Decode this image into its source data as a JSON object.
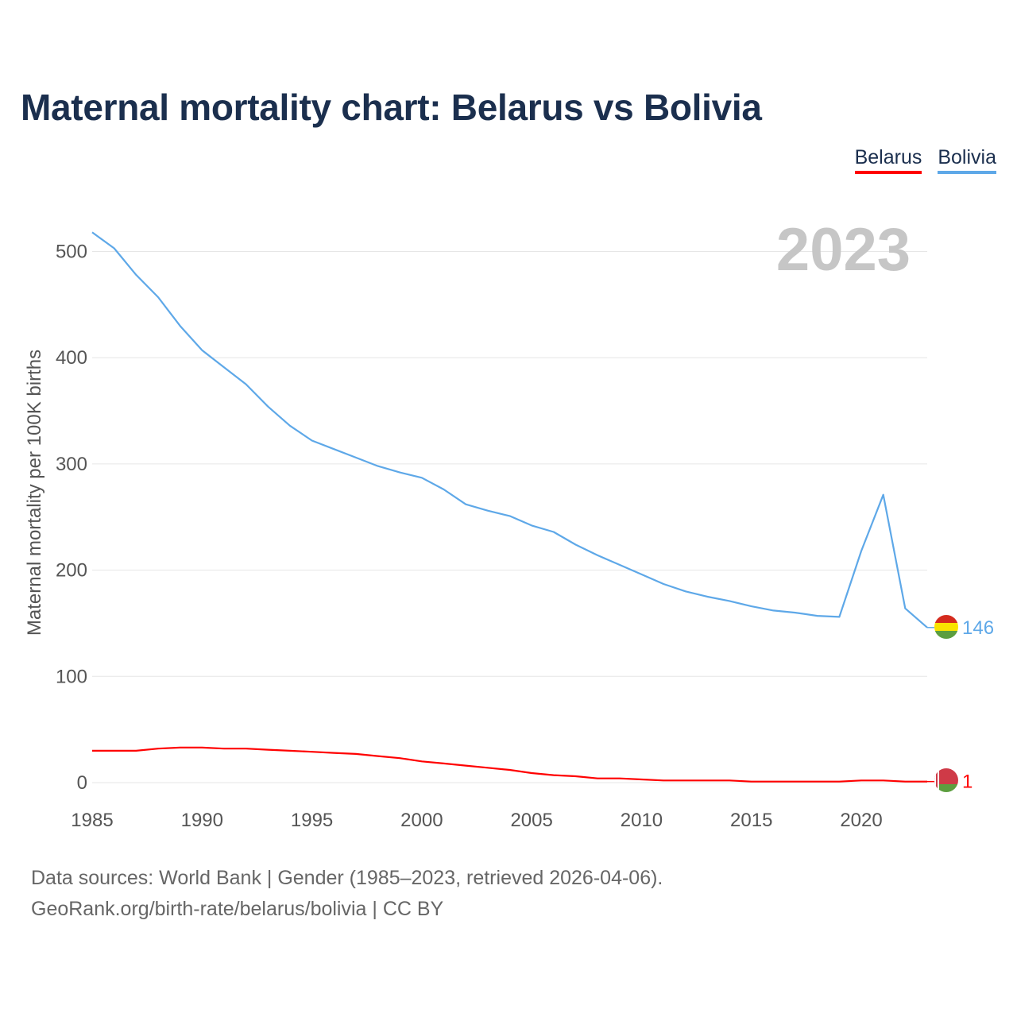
{
  "title": "Maternal mortality chart: Belarus vs Bolivia",
  "legend": {
    "belarus": "Belarus",
    "bolivia": "Bolivia"
  },
  "footer": {
    "line1": "Data sources: World Bank | Gender (1985–2023, retrieved 2026-04-06).",
    "line2": "GeoRank.org/birth-rate/belarus/bolivia | CC BY"
  },
  "colors": {
    "belarus": "#ff0000",
    "bolivia": "#5ea8e8",
    "title": "#1b2f4e",
    "grid": "#e6e6e6",
    "watermark": "#c6c6c6"
  },
  "chart_data": {
    "type": "line",
    "title": "Maternal mortality chart: Belarus vs Bolivia",
    "xlabel": "",
    "ylabel": "Maternal mortality per 100K births",
    "year_watermark": "2023",
    "xlim": [
      1985,
      2023
    ],
    "ylim": [
      0,
      520
    ],
    "x_ticks": [
      1985,
      1990,
      1995,
      2000,
      2005,
      2010,
      2015,
      2020
    ],
    "y_ticks": [
      0,
      100,
      200,
      300,
      400,
      500
    ],
    "x": [
      1985,
      1986,
      1987,
      1988,
      1989,
      1990,
      1991,
      1992,
      1993,
      1994,
      1995,
      1996,
      1997,
      1998,
      1999,
      2000,
      2001,
      2002,
      2003,
      2004,
      2005,
      2006,
      2007,
      2008,
      2009,
      2010,
      2011,
      2012,
      2013,
      2014,
      2015,
      2016,
      2017,
      2018,
      2019,
      2020,
      2021,
      2022,
      2023
    ],
    "series": [
      {
        "name": "Belarus",
        "key": "belarus",
        "end_label": "1",
        "values": [
          30,
          30,
          30,
          32,
          33,
          33,
          32,
          32,
          31,
          30,
          29,
          28,
          27,
          25,
          23,
          20,
          18,
          16,
          14,
          12,
          9,
          7,
          6,
          4,
          4,
          3,
          2,
          2,
          2,
          2,
          1,
          1,
          1,
          1,
          1,
          2,
          2,
          1,
          1
        ]
      },
      {
        "name": "Bolivia",
        "key": "bolivia",
        "end_label": "146",
        "values": [
          518,
          503,
          478,
          457,
          430,
          407,
          391,
          375,
          354,
          336,
          322,
          314,
          306,
          298,
          292,
          287,
          276,
          262,
          256,
          251,
          242,
          236,
          224,
          214,
          205,
          196,
          187,
          180,
          175,
          171,
          166,
          162,
          160,
          157,
          156,
          218,
          271,
          164,
          146
        ]
      }
    ]
  }
}
